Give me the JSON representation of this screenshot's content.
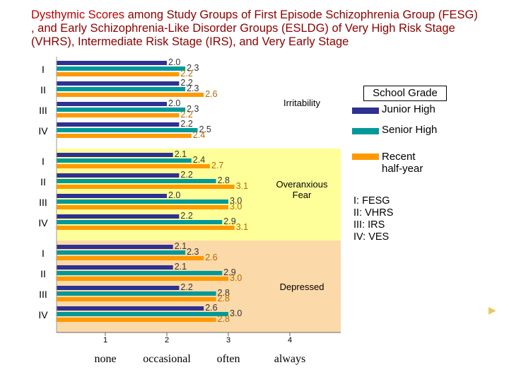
{
  "title": {
    "highlight": "Dysthymic Scores",
    "rest": " among Study Groups of First Episode Schizophrenia Group (FESG) , and Early Schizophrenia-Like Disorder Groups (ESLDG) of Very High Risk Stage (VHRS), Intermediate Risk Stage (IRS), and Very Early Stage"
  },
  "legend": {
    "title": "School Grade",
    "items": [
      {
        "label": "Junior High",
        "color": "#2e3192"
      },
      {
        "label": "Senior High",
        "color": "#009999"
      },
      {
        "label": "Recent half-year",
        "color": "#ff9900"
      }
    ]
  },
  "group_key": [
    "I: FESG",
    "II: VHRS",
    "III: IRS",
    "IV: VES"
  ],
  "chart_data": {
    "type": "bar",
    "orientation": "horizontal",
    "xlim": [
      0,
      4
    ],
    "x_ticks": [
      {
        "value": 1,
        "number": "1",
        "label": "none"
      },
      {
        "value": 2,
        "number": "2",
        "label": "occasional"
      },
      {
        "value": 3,
        "number": "3",
        "label": "often"
      },
      {
        "value": 4,
        "number": "4",
        "label": "always"
      }
    ],
    "group_labels": [
      "I",
      "II",
      "III",
      "IV"
    ],
    "panels": [
      {
        "name": "Irritability",
        "background": "#ffffff",
        "groups": [
          {
            "label": "I",
            "values": [
              2.0,
              2.3,
              2.2
            ]
          },
          {
            "label": "II",
            "values": [
              2.2,
              2.3,
              2.6
            ]
          },
          {
            "label": "III",
            "values": [
              2.0,
              2.3,
              2.2
            ]
          },
          {
            "label": "IV",
            "values": [
              2.2,
              2.5,
              2.4
            ]
          }
        ]
      },
      {
        "name": "Overanxious Fear",
        "background": "#ffff99",
        "groups": [
          {
            "label": "I",
            "values": [
              2.1,
              2.4,
              2.7
            ]
          },
          {
            "label": "II",
            "values": [
              2.2,
              2.8,
              3.1
            ]
          },
          {
            "label": "III",
            "values": [
              2.0,
              3.0,
              3.0
            ]
          },
          {
            "label": "IV",
            "values": [
              2.2,
              2.9,
              3.1
            ]
          }
        ]
      },
      {
        "name": "Depressed",
        "background": "#fbd9a8",
        "groups": [
          {
            "label": "I",
            "values": [
              2.1,
              2.3,
              2.6
            ]
          },
          {
            "label": "II",
            "values": [
              2.1,
              2.9,
              3.0
            ]
          },
          {
            "label": "III",
            "values": [
              2.2,
              2.8,
              2.8
            ]
          },
          {
            "label": "IV",
            "values": [
              2.6,
              3.0,
              2.8
            ]
          }
        ]
      }
    ]
  }
}
